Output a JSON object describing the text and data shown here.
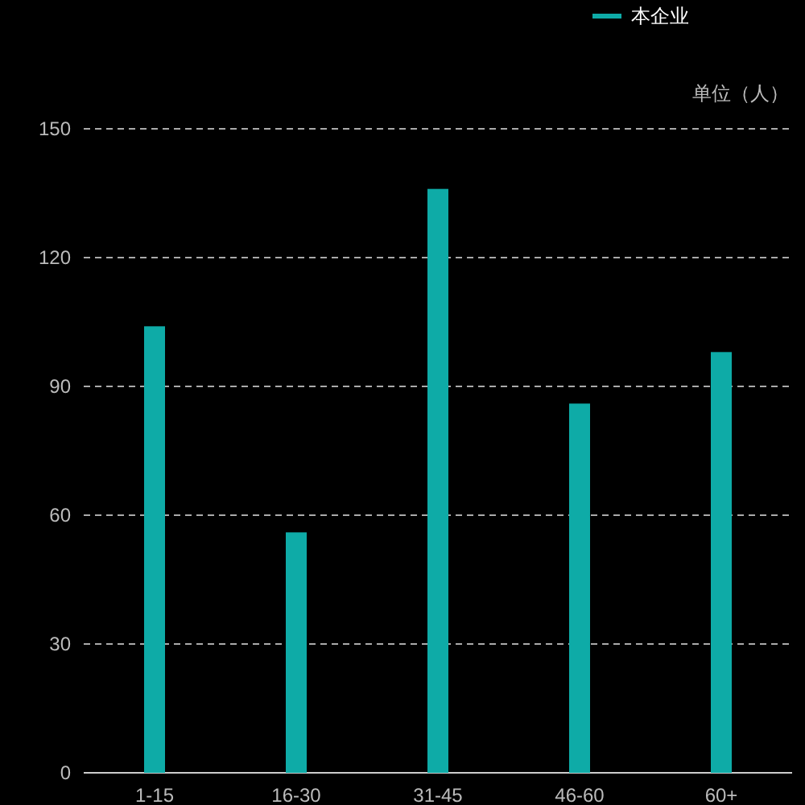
{
  "chart_data": {
    "type": "bar",
    "ylabel": "单位（人）",
    "categories": [
      "1-15",
      "16-30",
      "31-45",
      "46-60",
      "60+"
    ],
    "series": [
      {
        "name": "本企业",
        "color": "#0eaba7",
        "values": [
          104,
          56,
          136,
          86,
          98
        ]
      }
    ],
    "ylim": [
      0,
      150
    ],
    "yticks": [
      0,
      30,
      60,
      90,
      120,
      150
    ],
    "grid": "y",
    "legend": "top right"
  }
}
